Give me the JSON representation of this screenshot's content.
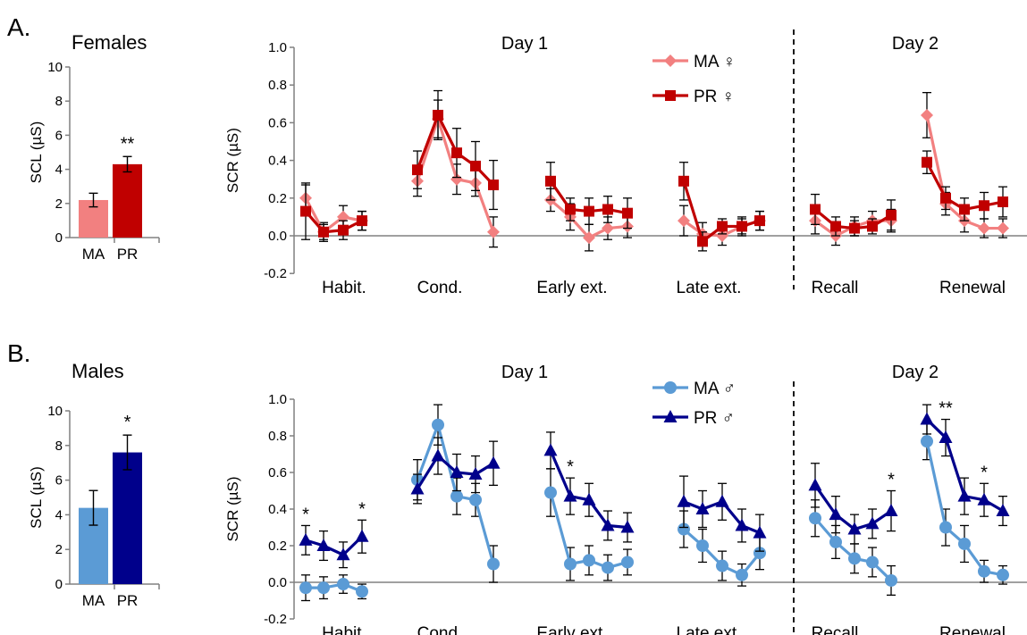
{
  "panels": [
    {
      "letter": "A.",
      "sex_title": "Females",
      "colors": {
        "MA": "#f28080",
        "PR": "#c00000"
      },
      "bar": {
        "ylabel": "SCL (µS)",
        "ylim": [
          0,
          10
        ],
        "ticks": [
          "0",
          "2",
          "4",
          "6",
          "8",
          "10"
        ],
        "tick_values": [
          0,
          2,
          4,
          6,
          8,
          10
        ],
        "categories": [
          "MA",
          "PR"
        ],
        "values": [
          2.2,
          4.3
        ],
        "errors": [
          0.4,
          0.45
        ],
        "sig": [
          "",
          "**"
        ]
      },
      "line": {
        "ylabel": "SCR (µS)",
        "ylim": [
          -0.2,
          1.0
        ],
        "ticks": [
          "-0.2",
          "0.0",
          "0.2",
          "0.4",
          "0.6",
          "0.8",
          "1.0"
        ],
        "tick_values": [
          -0.2,
          0,
          0.2,
          0.4,
          0.6,
          0.8,
          1.0
        ],
        "day_labels": [
          "Day 1",
          "Day 2"
        ],
        "phases": [
          "Habit.",
          "Cond.",
          "Early ext.",
          "Late ext.",
          "Recall",
          "Renewal"
        ],
        "legend": [
          "MA ♀",
          "PR ♀"
        ],
        "sig": [],
        "series": [
          {
            "name": "MA ♀",
            "marker": "diamond",
            "segments": [
              {
                "values": [
                  0.2,
                  0.02,
                  0.1,
                  0.08
                ],
                "errors": [
                  0.07,
                  0.05,
                  0.06,
                  0.05
                ]
              },
              {
                "values": [
                  0.29,
                  0.62,
                  0.3,
                  0.28,
                  0.02
                ],
                "errors": [
                  0.08,
                  0.1,
                  0.08,
                  0.07,
                  0.08
                ]
              },
              {
                "values": [
                  0.19,
                  0.1,
                  -0.01,
                  0.04,
                  0.05
                ],
                "errors": [
                  0.06,
                  0.07,
                  0.07,
                  0.06,
                  0.06
                ]
              },
              {
                "values": [
                  0.08,
                  0.01,
                  0.0,
                  0.05,
                  0.08
                ],
                "errors": [
                  0.08,
                  0.06,
                  0.05,
                  0.05,
                  0.05
                ]
              },
              {
                "values": [
                  0.08,
                  0.0,
                  0.05,
                  0.08,
                  0.08
                ],
                "errors": [
                  0.07,
                  0.05,
                  0.05,
                  0.05,
                  0.06
                ]
              },
              {
                "values": [
                  0.64,
                  0.17,
                  0.08,
                  0.04,
                  0.04
                ],
                "errors": [
                  0.12,
                  0.06,
                  0.06,
                  0.05,
                  0.05
                ]
              }
            ]
          },
          {
            "name": "PR ♀",
            "marker": "square",
            "segments": [
              {
                "values": [
                  0.13,
                  0.02,
                  0.03,
                  0.08
                ],
                "errors": [
                  0.15,
                  0.04,
                  0.05,
                  0.05
                ]
              },
              {
                "values": [
                  0.35,
                  0.64,
                  0.44,
                  0.37,
                  0.27
                ],
                "errors": [
                  0.1,
                  0.13,
                  0.13,
                  0.13,
                  0.13
                ]
              },
              {
                "values": [
                  0.29,
                  0.14,
                  0.13,
                  0.14,
                  0.12
                ],
                "errors": [
                  0.1,
                  0.06,
                  0.07,
                  0.07,
                  0.08
                ]
              },
              {
                "values": [
                  0.29,
                  -0.03,
                  0.05,
                  0.05,
                  0.08
                ],
                "errors": [
                  0.1,
                  0.05,
                  0.04,
                  0.04,
                  0.05
                ]
              },
              {
                "values": [
                  0.14,
                  0.05,
                  0.04,
                  0.05,
                  0.11
                ],
                "errors": [
                  0.08,
                  0.05,
                  0.04,
                  0.04,
                  0.08
                ]
              },
              {
                "values": [
                  0.39,
                  0.2,
                  0.14,
                  0.16,
                  0.18
                ],
                "errors": [
                  0.06,
                  0.06,
                  0.06,
                  0.07,
                  0.08
                ]
              }
            ]
          }
        ]
      }
    },
    {
      "letter": "B.",
      "sex_title": "Males",
      "colors": {
        "MA": "#5b9bd5",
        "PR": "#00008b"
      },
      "bar": {
        "ylabel": "SCL (µS)",
        "ylim": [
          0,
          10
        ],
        "ticks": [
          "0",
          "2",
          "4",
          "6",
          "8",
          "10"
        ],
        "tick_values": [
          0,
          2,
          4,
          6,
          8,
          10
        ],
        "categories": [
          "MA",
          "PR"
        ],
        "values": [
          4.4,
          7.6
        ],
        "errors": [
          1.0,
          1.0
        ],
        "sig": [
          "",
          "*"
        ]
      },
      "line": {
        "ylabel": "SCR (µS)",
        "ylim": [
          -0.2,
          1.0
        ],
        "ticks": [
          "-0.2",
          "0.0",
          "0.2",
          "0.4",
          "0.6",
          "0.8",
          "1.0"
        ],
        "tick_values": [
          -0.2,
          0,
          0.2,
          0.4,
          0.6,
          0.8,
          1.0
        ],
        "day_labels": [
          "Day 1",
          "Day 2"
        ],
        "phases": [
          "Habit.",
          "Cond.",
          "Early ext.",
          "Late ext.",
          "Recall",
          "Renewal"
        ],
        "legend": [
          "MA ♂",
          "PR ♂"
        ],
        "sig": [
          {
            "segment": 0,
            "trial": 0,
            "text": "*"
          },
          {
            "segment": 0,
            "trial": 3,
            "text": "*"
          },
          {
            "segment": 2,
            "trial": 1,
            "text": "*"
          },
          {
            "segment": 4,
            "trial": 4,
            "text": "*"
          },
          {
            "segment": 5,
            "trial": 1,
            "text": "**"
          },
          {
            "segment": 5,
            "trial": 3,
            "text": "*"
          }
        ],
        "series": [
          {
            "name": "MA ♂",
            "marker": "circle",
            "segments": [
              {
                "values": [
                  -0.03,
                  -0.03,
                  -0.01,
                  -0.05
                ],
                "errors": [
                  0.07,
                  0.06,
                  0.05,
                  0.04
                ]
              },
              {
                "values": [
                  0.56,
                  0.86,
                  0.47,
                  0.45,
                  0.1
                ],
                "errors": [
                  0.11,
                  0.11,
                  0.1,
                  0.09,
                  0.1
                ]
              },
              {
                "values": [
                  0.49,
                  0.1,
                  0.12,
                  0.08,
                  0.11
                ],
                "errors": [
                  0.13,
                  0.09,
                  0.08,
                  0.07,
                  0.07
                ]
              },
              {
                "values": [
                  0.29,
                  0.2,
                  0.09,
                  0.04,
                  0.16
                ],
                "errors": [
                  0.1,
                  0.09,
                  0.08,
                  0.06,
                  0.09
                ]
              },
              {
                "values": [
                  0.35,
                  0.22,
                  0.13,
                  0.11,
                  0.01
                ],
                "errors": [
                  0.1,
                  0.09,
                  0.08,
                  0.08,
                  0.08
                ]
              },
              {
                "values": [
                  0.77,
                  0.3,
                  0.21,
                  0.06,
                  0.04
                ],
                "errors": [
                  0.1,
                  0.1,
                  0.1,
                  0.06,
                  0.05
                ]
              }
            ]
          },
          {
            "name": "PR ♂",
            "marker": "triangle",
            "segments": [
              {
                "values": [
                  0.23,
                  0.2,
                  0.15,
                  0.25
                ],
                "errors": [
                  0.08,
                  0.08,
                  0.07,
                  0.09
                ]
              },
              {
                "values": [
                  0.51,
                  0.69,
                  0.6,
                  0.59,
                  0.65
                ],
                "errors": [
                  0.08,
                  0.1,
                  0.1,
                  0.1,
                  0.12
                ]
              },
              {
                "values": [
                  0.72,
                  0.47,
                  0.45,
                  0.31,
                  0.3
                ],
                "errors": [
                  0.1,
                  0.1,
                  0.09,
                  0.08,
                  0.08
                ]
              },
              {
                "values": [
                  0.44,
                  0.4,
                  0.44,
                  0.31,
                  0.27
                ],
                "errors": [
                  0.14,
                  0.1,
                  0.1,
                  0.09,
                  0.1
                ]
              },
              {
                "values": [
                  0.53,
                  0.37,
                  0.29,
                  0.32,
                  0.39
                ],
                "errors": [
                  0.12,
                  0.1,
                  0.08,
                  0.08,
                  0.11
                ]
              },
              {
                "values": [
                  0.89,
                  0.79,
                  0.47,
                  0.45,
                  0.39
                ],
                "errors": [
                  0.08,
                  0.1,
                  0.1,
                  0.09,
                  0.08
                ]
              }
            ]
          }
        ]
      }
    }
  ],
  "chart_data": [
    {
      "type": "bar",
      "title": "Females",
      "ylabel": "SCL (µS)",
      "ylim": [
        0,
        10
      ],
      "categories": [
        "MA",
        "PR"
      ],
      "values": [
        2.2,
        4.3
      ],
      "errors": [
        0.4,
        0.45
      ],
      "annotations": [
        "**"
      ]
    },
    {
      "type": "line",
      "ylabel": "SCR (µS)",
      "ylim": [
        -0.2,
        1.0
      ],
      "grid": false,
      "legend_position": "top",
      "phases": [
        "Habit.",
        "Cond.",
        "Early ext.",
        "Late ext.",
        "Recall",
        "Renewal"
      ],
      "days": [
        "Day 1",
        "Day 2"
      ],
      "series": [
        {
          "name": "MA ♀",
          "values": [
            [
              0.2,
              0.02,
              0.1,
              0.08
            ],
            [
              0.29,
              0.62,
              0.3,
              0.28,
              0.02
            ],
            [
              0.19,
              0.1,
              -0.01,
              0.04,
              0.05
            ],
            [
              0.08,
              0.01,
              0.0,
              0.05,
              0.08
            ],
            [
              0.08,
              0.0,
              0.05,
              0.08,
              0.08
            ],
            [
              0.64,
              0.17,
              0.08,
              0.04,
              0.04
            ]
          ]
        },
        {
          "name": "PR ♀",
          "values": [
            [
              0.13,
              0.02,
              0.03,
              0.08
            ],
            [
              0.35,
              0.64,
              0.44,
              0.37,
              0.27
            ],
            [
              0.29,
              0.14,
              0.13,
              0.14,
              0.12
            ],
            [
              0.29,
              -0.03,
              0.05,
              0.05,
              0.08
            ],
            [
              0.14,
              0.05,
              0.04,
              0.05,
              0.11
            ],
            [
              0.39,
              0.2,
              0.14,
              0.16,
              0.18
            ]
          ]
        }
      ]
    },
    {
      "type": "bar",
      "title": "Males",
      "ylabel": "SCL (µS)",
      "ylim": [
        0,
        10
      ],
      "categories": [
        "MA",
        "PR"
      ],
      "values": [
        4.4,
        7.6
      ],
      "errors": [
        1.0,
        1.0
      ],
      "annotations": [
        "*"
      ]
    },
    {
      "type": "line",
      "ylabel": "SCR (µS)",
      "ylim": [
        -0.2,
        1.0
      ],
      "grid": false,
      "legend_position": "top",
      "phases": [
        "Habit.",
        "Cond.",
        "Early ext.",
        "Late ext.",
        "Recall",
        "Renewal"
      ],
      "days": [
        "Day 1",
        "Day 2"
      ],
      "series": [
        {
          "name": "MA ♂",
          "values": [
            [
              -0.03,
              -0.03,
              -0.01,
              -0.05
            ],
            [
              0.56,
              0.86,
              0.47,
              0.45,
              0.1
            ],
            [
              0.49,
              0.1,
              0.12,
              0.08,
              0.11
            ],
            [
              0.29,
              0.2,
              0.09,
              0.04,
              0.16
            ],
            [
              0.35,
              0.22,
              0.13,
              0.11,
              0.01
            ],
            [
              0.77,
              0.3,
              0.21,
              0.06,
              0.04
            ]
          ]
        },
        {
          "name": "PR ♂",
          "values": [
            [
              0.23,
              0.2,
              0.15,
              0.25
            ],
            [
              0.51,
              0.69,
              0.6,
              0.59,
              0.65
            ],
            [
              0.72,
              0.47,
              0.45,
              0.31,
              0.3
            ],
            [
              0.44,
              0.4,
              0.44,
              0.31,
              0.27
            ],
            [
              0.53,
              0.37,
              0.29,
              0.32,
              0.39
            ],
            [
              0.89,
              0.79,
              0.47,
              0.45,
              0.39
            ]
          ]
        }
      ]
    }
  ]
}
